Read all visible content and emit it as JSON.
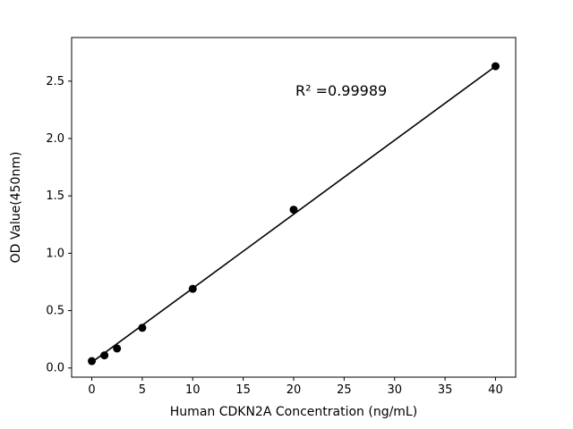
{
  "chart_data": {
    "type": "scatter",
    "xlabel": "Human CDKN2A Concentration (ng/mL)",
    "ylabel": "OD Value(450nm)",
    "annotation": "R² =0.99989",
    "x": [
      0,
      1.25,
      2.5,
      5,
      10,
      20,
      40
    ],
    "y": [
      0.06,
      0.11,
      0.17,
      0.35,
      0.69,
      1.38,
      2.63
    ],
    "trendline": {
      "x1": 0,
      "y1": 0.05,
      "x2": 40,
      "y2": 2.63
    },
    "xlim": [
      -2,
      42
    ],
    "ylim": [
      -0.08,
      2.88
    ],
    "xtick_values": [
      0,
      5,
      10,
      15,
      20,
      25,
      30,
      35,
      40
    ],
    "xtick_labels": [
      "0",
      "5",
      "10",
      "15",
      "20",
      "25",
      "30",
      "35",
      "40"
    ],
    "ytick_values": [
      0.0,
      0.5,
      1.0,
      1.5,
      2.0,
      2.5
    ],
    "ytick_labels": [
      "0.0",
      "0.5",
      "1.0",
      "1.5",
      "2.0",
      "2.5"
    ],
    "marker_color": "#000000",
    "line_color": "#000000",
    "axis_color": "#000000",
    "background_color": "#ffffff",
    "grid": false,
    "legend_position": "none"
  }
}
